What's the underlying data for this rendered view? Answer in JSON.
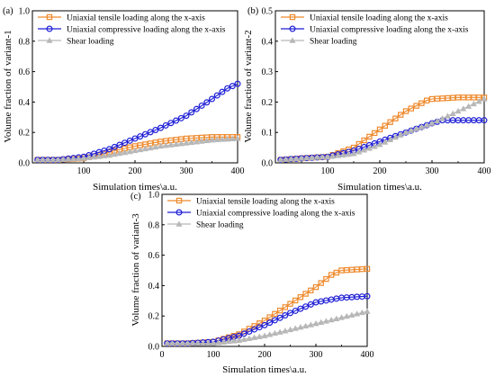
{
  "colors": {
    "tensile": "#ee8a2e",
    "compressive": "#1f1fd6",
    "shear": "#b7b7b7"
  },
  "chart_data": [
    {
      "panel_label": "(a)",
      "type": "line",
      "xlabel": "Simulation times\\a.u.",
      "ylabel": "Volume fraction of variant-1",
      "xlim": [
        0,
        400
      ],
      "ylim": [
        0,
        1.0
      ],
      "xticks": [
        "100",
        "200",
        "300",
        "400"
      ],
      "yticks": [
        "0.0",
        "0.2",
        "0.4",
        "0.6",
        "0.8",
        "1.0"
      ],
      "legend": "top-left",
      "series": [
        {
          "name": "Uniaxial tensile loading along the x-axis",
          "marker": "square",
          "color": "#ee8a2e",
          "points": [
            [
              10,
              0.02
            ],
            [
              50,
              0.02
            ],
            [
              100,
              0.03
            ],
            [
              130,
              0.05
            ],
            [
              160,
              0.08
            ],
            [
              200,
              0.11
            ],
            [
              250,
              0.14
            ],
            [
              300,
              0.16
            ],
            [
              350,
              0.17
            ],
            [
              400,
              0.17
            ]
          ]
        },
        {
          "name": "Uniaxial compressive loading along the x-axis",
          "marker": "circle",
          "color": "#1f1fd6",
          "points": [
            [
              10,
              0.02
            ],
            [
              50,
              0.02
            ],
            [
              100,
              0.04
            ],
            [
              150,
              0.09
            ],
            [
              200,
              0.16
            ],
            [
              250,
              0.23
            ],
            [
              300,
              0.31
            ],
            [
              350,
              0.42
            ],
            [
              380,
              0.49
            ],
            [
              400,
              0.52
            ]
          ]
        },
        {
          "name": "Shear loading",
          "marker": "triangle",
          "color": "#b7b7b7",
          "points": [
            [
              10,
              0.02
            ],
            [
              50,
              0.02
            ],
            [
              100,
              0.03
            ],
            [
              150,
              0.05
            ],
            [
              200,
              0.08
            ],
            [
              250,
              0.11
            ],
            [
              300,
              0.13
            ],
            [
              350,
              0.15
            ],
            [
              400,
              0.16
            ]
          ]
        }
      ]
    },
    {
      "panel_label": "(b)",
      "type": "line",
      "xlabel": "Simulation times\\a.u.",
      "ylabel": "Volume fraction of variant-2",
      "xlim": [
        0,
        400
      ],
      "ylim": [
        0,
        0.5
      ],
      "xticks": [
        "100",
        "200",
        "300",
        "400"
      ],
      "yticks": [
        "0.0",
        "0.1",
        "0.2",
        "0.3",
        "0.4",
        "0.5"
      ],
      "legend": "top-left",
      "series": [
        {
          "name": "Uniaxial tensile loading along the x-axis",
          "marker": "square",
          "color": "#ee8a2e",
          "points": [
            [
              10,
              0.01
            ],
            [
              50,
              0.015
            ],
            [
              100,
              0.02
            ],
            [
              150,
              0.05
            ],
            [
              200,
              0.11
            ],
            [
              250,
              0.17
            ],
            [
              290,
              0.205
            ],
            [
              300,
              0.21
            ],
            [
              350,
              0.215
            ],
            [
              400,
              0.215
            ]
          ]
        },
        {
          "name": "Uniaxial compressive loading along the x-axis",
          "marker": "circle",
          "color": "#1f1fd6",
          "points": [
            [
              10,
              0.01
            ],
            [
              50,
              0.015
            ],
            [
              100,
              0.02
            ],
            [
              150,
              0.04
            ],
            [
              200,
              0.07
            ],
            [
              250,
              0.1
            ],
            [
              300,
              0.13
            ],
            [
              320,
              0.14
            ],
            [
              350,
              0.14
            ],
            [
              400,
              0.14
            ]
          ]
        },
        {
          "name": "Shear loading",
          "marker": "triangle",
          "color": "#b7b7b7",
          "points": [
            [
              10,
              0.01
            ],
            [
              50,
              0.015
            ],
            [
              100,
              0.02
            ],
            [
              150,
              0.03
            ],
            [
              200,
              0.06
            ],
            [
              250,
              0.1
            ],
            [
              300,
              0.13
            ],
            [
              350,
              0.17
            ],
            [
              400,
              0.21
            ]
          ]
        }
      ]
    },
    {
      "panel_label": "(c)",
      "type": "line",
      "xlabel": "Simulation times\\a.u.",
      "ylabel": "Volume fraction of variant-3",
      "xlim": [
        0,
        400
      ],
      "ylim": [
        0,
        1.0
      ],
      "xticks": [
        "0",
        "100",
        "200",
        "300",
        "400"
      ],
      "yticks": [
        "0.0",
        "0.2",
        "0.4",
        "0.6",
        "0.8",
        "1.0"
      ],
      "legend": "top-left",
      "series": [
        {
          "name": "Uniaxial tensile loading along the x-axis",
          "marker": "square",
          "color": "#ee8a2e",
          "points": [
            [
              10,
              0.02
            ],
            [
              50,
              0.02
            ],
            [
              100,
              0.03
            ],
            [
              150,
              0.08
            ],
            [
              200,
              0.17
            ],
            [
              250,
              0.28
            ],
            [
              300,
              0.39
            ],
            [
              330,
              0.47
            ],
            [
              350,
              0.5
            ],
            [
              400,
              0.51
            ]
          ]
        },
        {
          "name": "Uniaxial compressive loading along the x-axis",
          "marker": "circle",
          "color": "#1f1fd6",
          "points": [
            [
              10,
              0.02
            ],
            [
              50,
              0.02
            ],
            [
              100,
              0.03
            ],
            [
              150,
              0.07
            ],
            [
              200,
              0.14
            ],
            [
              250,
              0.22
            ],
            [
              300,
              0.29
            ],
            [
              350,
              0.32
            ],
            [
              400,
              0.33
            ]
          ]
        },
        {
          "name": "Shear loading",
          "marker": "triangle",
          "color": "#b7b7b7",
          "points": [
            [
              10,
              0.02
            ],
            [
              50,
              0.02
            ],
            [
              100,
              0.02
            ],
            [
              150,
              0.04
            ],
            [
              200,
              0.07
            ],
            [
              250,
              0.11
            ],
            [
              300,
              0.15
            ],
            [
              350,
              0.19
            ],
            [
              400,
              0.23
            ]
          ]
        }
      ]
    }
  ]
}
